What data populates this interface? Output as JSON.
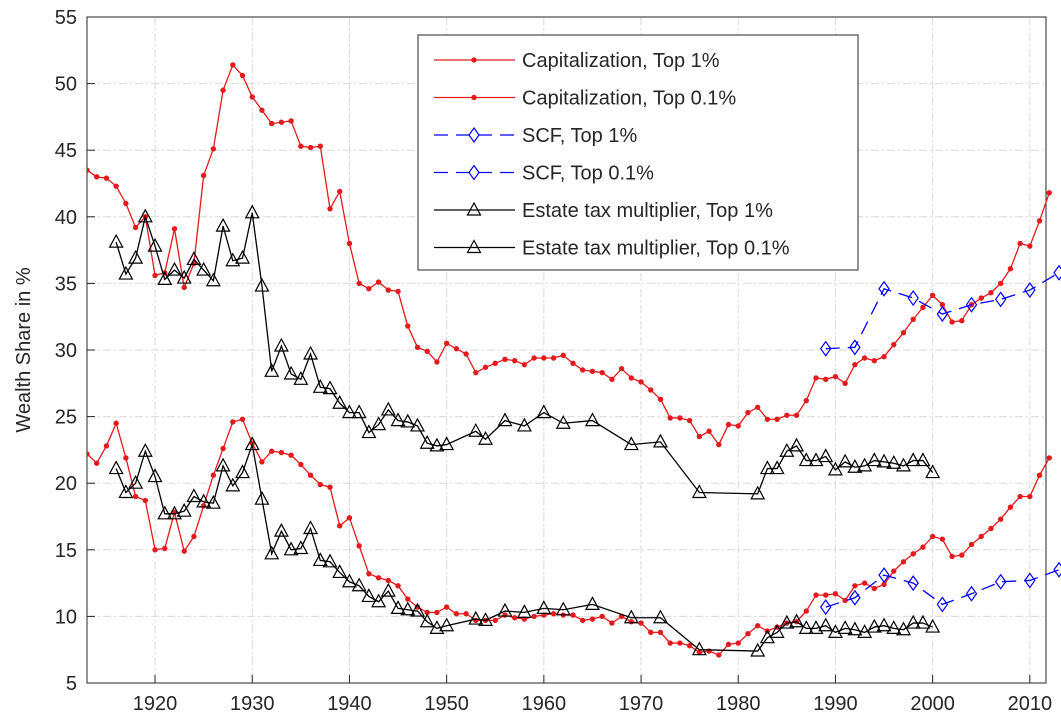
{
  "chart_data": {
    "type": "line",
    "y_label": "Wealth Share in %",
    "xlim": [
      1913,
      2013
    ],
    "xticks": [
      1920,
      1930,
      1940,
      1950,
      1960,
      1970,
      1980,
      1990,
      2000,
      2010
    ],
    "ylim": [
      5,
      55
    ],
    "yticks": [
      5,
      10,
      15,
      20,
      25,
      30,
      35,
      40,
      45,
      50,
      55
    ],
    "grid": true,
    "legend_position": "top",
    "series": [
      {
        "name": "Capitalization, Top 1%",
        "color": "#e41a1c",
        "marker": "dot",
        "dash": "solid",
        "x": [
          1913,
          1914,
          1915,
          1916,
          1917,
          1918,
          1919,
          1920,
          1921,
          1922,
          1923,
          1924,
          1925,
          1926,
          1927,
          1928,
          1929,
          1930,
          1931,
          1932,
          1933,
          1934,
          1935,
          1936,
          1937,
          1938,
          1939,
          1940,
          1941,
          1942,
          1943,
          1944,
          1945,
          1946,
          1947,
          1948,
          1949,
          1950,
          1951,
          1952,
          1953,
          1954,
          1955,
          1956,
          1957,
          1958,
          1959,
          1960,
          1961,
          1962,
          1963,
          1964,
          1965,
          1966,
          1967,
          1968,
          1969,
          1970,
          1971,
          1972,
          1973,
          1974,
          1975,
          1976,
          1977,
          1978,
          1979,
          1980,
          1981,
          1982,
          1983,
          1984,
          1985,
          1986,
          1987,
          1988,
          1989,
          1990,
          1991,
          1992,
          1993,
          1994,
          1995,
          1996,
          1997,
          1998,
          1999,
          2000,
          2001,
          2002,
          2003,
          2004,
          2005,
          2006,
          2007,
          2008,
          2009,
          2010,
          2011,
          2012
        ],
        "values": [
          43.5,
          43,
          42.9,
          42.3,
          41,
          39.2,
          40,
          35.6,
          35.8,
          39.1,
          34.7,
          36.5,
          43.1,
          45.1,
          49.5,
          51.4,
          50.6,
          49,
          48,
          47,
          47.1,
          47.2,
          45.3,
          45.2,
          45.3,
          40.6,
          41.9,
          38,
          35,
          34.6,
          35.1,
          34.5,
          34.4,
          31.8,
          30.2,
          29.9,
          29.1,
          30.5,
          30.1,
          29.7,
          28.3,
          28.7,
          29,
          29.3,
          29.2,
          28.9,
          29.4,
          29.4,
          29.4,
          29.6,
          29,
          28.5,
          28.4,
          28.3,
          27.8,
          28.6,
          27.9,
          27.6,
          27,
          26.3,
          24.9,
          24.9,
          24.7,
          23.5,
          23.9,
          22.9,
          24.4,
          24.3,
          25.3,
          25.7,
          24.8,
          24.8,
          25.1,
          25.1,
          26.2,
          27.9,
          27.8,
          28,
          27.5,
          28.9,
          29.4,
          29.2,
          29.5,
          30.4,
          31.3,
          32.3,
          33.2,
          34.1,
          33.4,
          32.1,
          32.2,
          33.4,
          33.9,
          34.3,
          35,
          36.1,
          38,
          37.8,
          39.7,
          41.8
        ]
      },
      {
        "name": "Capitalization, Top 0.1%",
        "color": "#e41a1c",
        "marker": "dot",
        "dash": "solid",
        "x": [
          1913,
          1914,
          1915,
          1916,
          1917,
          1918,
          1919,
          1920,
          1921,
          1922,
          1923,
          1924,
          1925,
          1926,
          1927,
          1928,
          1929,
          1930,
          1931,
          1932,
          1933,
          1934,
          1935,
          1936,
          1937,
          1938,
          1939,
          1940,
          1941,
          1942,
          1943,
          1944,
          1945,
          1946,
          1947,
          1948,
          1949,
          1950,
          1951,
          1952,
          1953,
          1954,
          1955,
          1956,
          1957,
          1958,
          1959,
          1960,
          1961,
          1962,
          1963,
          1964,
          1965,
          1966,
          1967,
          1968,
          1969,
          1970,
          1971,
          1972,
          1973,
          1974,
          1975,
          1976,
          1977,
          1978,
          1979,
          1980,
          1981,
          1982,
          1983,
          1984,
          1985,
          1986,
          1987,
          1988,
          1989,
          1990,
          1991,
          1992,
          1993,
          1994,
          1995,
          1996,
          1997,
          1998,
          1999,
          2000,
          2001,
          2002,
          2003,
          2004,
          2005,
          2006,
          2007,
          2008,
          2009,
          2010,
          2011,
          2012
        ],
        "values": [
          22.2,
          21.5,
          22.8,
          24.5,
          21.9,
          19,
          18.7,
          15,
          15.1,
          17.8,
          14.9,
          16,
          18.3,
          20.6,
          22.6,
          24.6,
          24.8,
          23,
          21.6,
          22.4,
          22.3,
          22.1,
          21.4,
          20.6,
          19.9,
          19.7,
          16.8,
          17.4,
          15.3,
          13.2,
          12.9,
          12.7,
          12.3,
          11.3,
          10.7,
          10.3,
          10.3,
          10.7,
          10.2,
          10.2,
          9.7,
          9.7,
          9.7,
          10.1,
          9.9,
          9.8,
          10,
          10.1,
          10.2,
          10.1,
          10.1,
          9.7,
          9.8,
          10,
          9.5,
          10,
          9.6,
          9.5,
          8.8,
          8.8,
          8,
          8,
          7.8,
          7.3,
          7.4,
          7.1,
          7.9,
          8,
          8.7,
          9.3,
          8.9,
          9.2,
          9.5,
          9.6,
          10.4,
          11.6,
          11.6,
          11.7,
          11.2,
          12.3,
          12.5,
          12.1,
          12.4,
          13.4,
          14.1,
          14.7,
          15.2,
          16,
          15.8,
          14.5,
          14.6,
          15.4,
          16,
          16.6,
          17.3,
          18.2,
          19,
          19,
          20.6,
          21.9
        ]
      },
      {
        "name": "SCF, Top 1%",
        "color": "#0000ff",
        "marker": "diamond",
        "dash": "dashed",
        "x": [
          1989,
          1992,
          1995,
          1998,
          2001,
          2004,
          2007,
          2010,
          2013
        ],
        "values": [
          30.1,
          30.2,
          34.6,
          33.9,
          32.7,
          33.4,
          33.8,
          34.5,
          35.8
        ]
      },
      {
        "name": "SCF, Top 0.1%",
        "color": "#0000ff",
        "marker": "diamond",
        "dash": "dashed",
        "x": [
          1989,
          1992,
          1995,
          1998,
          2001,
          2004,
          2007,
          2010,
          2013
        ],
        "values": [
          10.7,
          11.4,
          13.1,
          12.5,
          10.9,
          11.7,
          12.6,
          12.7,
          13.5
        ]
      },
      {
        "name": "Estate tax multiplier, Top 1%",
        "color": "#000000",
        "marker": "triangle",
        "dash": "solid",
        "x": [
          1916,
          1917,
          1918,
          1919,
          1920,
          1921,
          1922,
          1923,
          1924,
          1925,
          1926,
          1927,
          1928,
          1929,
          1930,
          1931,
          1932,
          1933,
          1934,
          1935,
          1936,
          1937,
          1938,
          1939,
          1940,
          1941,
          1942,
          1943,
          1944,
          1945,
          1946,
          1947,
          1948,
          1949,
          1950,
          1953,
          1954,
          1956,
          1958,
          1960,
          1962,
          1965,
          1969,
          1972,
          1976,
          1982,
          1983,
          1984,
          1985,
          1986,
          1987,
          1988,
          1989,
          1990,
          1991,
          1992,
          1993,
          1994,
          1995,
          1996,
          1997,
          1998,
          1999,
          2000
        ],
        "values": [
          38.1,
          35.7,
          36.9,
          40,
          37.8,
          35.3,
          36,
          35.4,
          36.8,
          36,
          35.2,
          39.3,
          36.7,
          36.9,
          40.3,
          34.8,
          28.4,
          30.3,
          28.2,
          27.8,
          29.7,
          27.2,
          27.1,
          26,
          25.3,
          25.3,
          23.8,
          24.4,
          25.5,
          24.7,
          24.6,
          24.3,
          23,
          22.8,
          22.9,
          23.9,
          23.3,
          24.7,
          24.3,
          25.3,
          24.5,
          24.7,
          22.9,
          23.1,
          19.3,
          19.2,
          21.1,
          21.1,
          22.4,
          22.8,
          21.7,
          21.7,
          22,
          21,
          21.6,
          21.2,
          21.3,
          21.7,
          21.6,
          21.5,
          21.3,
          21.7,
          21.7,
          20.8
        ]
      },
      {
        "name": "Estate tax multiplier, Top 0.1%",
        "color": "#000000",
        "marker": "triangle",
        "dash": "solid",
        "x": [
          1916,
          1917,
          1918,
          1919,
          1920,
          1921,
          1922,
          1923,
          1924,
          1925,
          1926,
          1927,
          1928,
          1929,
          1930,
          1931,
          1932,
          1933,
          1934,
          1935,
          1936,
          1937,
          1938,
          1939,
          1940,
          1941,
          1942,
          1943,
          1944,
          1945,
          1946,
          1947,
          1948,
          1949,
          1950,
          1953,
          1954,
          1956,
          1958,
          1960,
          1962,
          1965,
          1969,
          1972,
          1976,
          1982,
          1983,
          1984,
          1985,
          1986,
          1987,
          1988,
          1989,
          1990,
          1991,
          1992,
          1993,
          1994,
          1995,
          1996,
          1997,
          1998,
          1999,
          2000
        ],
        "values": [
          21.1,
          19.3,
          20,
          22.4,
          20.5,
          17.7,
          17.7,
          17.9,
          19,
          18.6,
          18.5,
          21.3,
          19.8,
          20.8,
          22.9,
          18.8,
          14.7,
          16.4,
          15,
          15.1,
          16.6,
          14.2,
          14.1,
          13.3,
          12.6,
          12.3,
          11.5,
          11.1,
          11.9,
          10.6,
          10.5,
          10.4,
          9.6,
          9.1,
          9.3,
          9.8,
          9.7,
          10.4,
          10.3,
          10.6,
          10.5,
          10.9,
          9.9,
          9.9,
          7.5,
          7.4,
          8.4,
          8.8,
          9.5,
          9.6,
          9.1,
          9.1,
          9.3,
          8.8,
          9.1,
          9,
          8.8,
          9.2,
          9.3,
          9.1,
          9,
          9.5,
          9.5,
          9.2
        ]
      }
    ]
  }
}
